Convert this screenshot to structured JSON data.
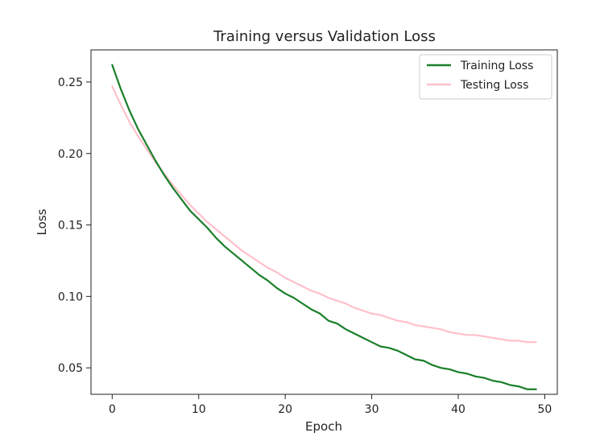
{
  "chart_data": {
    "type": "line",
    "title": "Training versus Validation Loss",
    "xlabel": "Epoch",
    "ylabel": "Loss",
    "xlim": [
      -2.45,
      51.45
    ],
    "ylim": [
      0.0315,
      0.2725
    ],
    "xticks": [
      0,
      10,
      20,
      30,
      40,
      50
    ],
    "xtick_labels": [
      "0",
      "10",
      "20",
      "30",
      "40",
      "50"
    ],
    "yticks": [
      0.05,
      0.1,
      0.15,
      0.2,
      0.25
    ],
    "ytick_labels": [
      "0.05",
      "0.10",
      "0.15",
      "0.20",
      "0.25"
    ],
    "grid": false,
    "legend_position": "top-right",
    "series": [
      {
        "name": "Training Loss",
        "color": "#1a7f2a",
        "x": [
          0,
          1,
          2,
          3,
          4,
          5,
          6,
          7,
          8,
          9,
          10,
          11,
          12,
          13,
          14,
          15,
          16,
          17,
          18,
          19,
          20,
          21,
          22,
          23,
          24,
          25,
          26,
          27,
          28,
          29,
          30,
          31,
          32,
          33,
          34,
          35,
          36,
          37,
          38,
          39,
          40,
          41,
          42,
          43,
          44,
          45,
          46,
          47,
          48,
          49
        ],
        "values": [
          0.262,
          0.245,
          0.23,
          0.217,
          0.206,
          0.195,
          0.185,
          0.176,
          0.168,
          0.16,
          0.154,
          0.148,
          0.141,
          0.135,
          0.13,
          0.125,
          0.12,
          0.115,
          0.111,
          0.106,
          0.102,
          0.099,
          0.095,
          0.091,
          0.088,
          0.083,
          0.081,
          0.077,
          0.074,
          0.071,
          0.068,
          0.065,
          0.064,
          0.062,
          0.059,
          0.056,
          0.055,
          0.052,
          0.05,
          0.049,
          0.047,
          0.046,
          0.044,
          0.043,
          0.041,
          0.04,
          0.038,
          0.037,
          0.035,
          0.035
        ]
      },
      {
        "name": "Testing Loss",
        "color": "#ffc0cb",
        "x": [
          0,
          1,
          2,
          3,
          4,
          5,
          6,
          7,
          8,
          9,
          10,
          11,
          12,
          13,
          14,
          15,
          16,
          17,
          18,
          19,
          20,
          21,
          22,
          23,
          24,
          25,
          26,
          27,
          28,
          29,
          30,
          31,
          32,
          33,
          34,
          35,
          36,
          37,
          38,
          39,
          40,
          41,
          42,
          43,
          44,
          45,
          46,
          47,
          48,
          49
        ],
        "values": [
          0.247,
          0.234,
          0.222,
          0.212,
          0.203,
          0.194,
          0.186,
          0.178,
          0.171,
          0.164,
          0.158,
          0.152,
          0.147,
          0.142,
          0.137,
          0.132,
          0.128,
          0.124,
          0.12,
          0.117,
          0.113,
          0.11,
          0.107,
          0.104,
          0.102,
          0.099,
          0.097,
          0.095,
          0.092,
          0.09,
          0.088,
          0.087,
          0.085,
          0.083,
          0.082,
          0.08,
          0.079,
          0.078,
          0.077,
          0.075,
          0.074,
          0.073,
          0.073,
          0.072,
          0.071,
          0.07,
          0.069,
          0.069,
          0.068,
          0.068
        ]
      }
    ]
  }
}
